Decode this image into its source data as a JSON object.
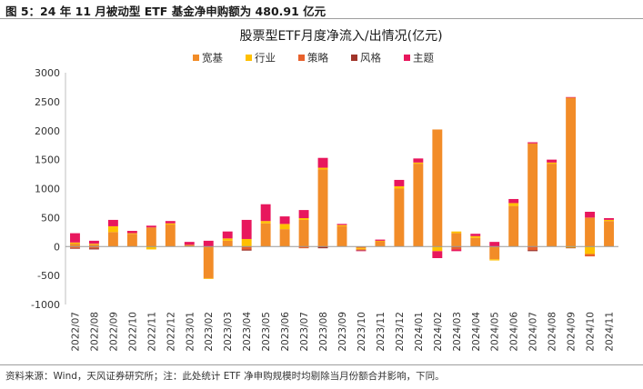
{
  "figure_title": "图 5：24 年 11 月被动型 ETF 基金净申购额为 480.91 亿元",
  "source_note": "资料来源：Wind，天风证券研究所；注：此处统计 ETF 净申购规模时均剔除当月份额合并影响，下同。",
  "chart_data": {
    "type": "bar",
    "stacked": true,
    "title": "股票型ETF月度净流入/出情况(亿元)",
    "xlabel": "",
    "ylabel": "",
    "ylim": [
      -1000,
      3000
    ],
    "yticks": [
      -1000,
      -500,
      0,
      500,
      1000,
      1500,
      2000,
      2500,
      3000
    ],
    "legend_position": "top-center",
    "categories": [
      "2022/07",
      "2022/08",
      "2022/09",
      "2022/10",
      "2022/11",
      "2022/12",
      "2023/01",
      "2023/02",
      "2023/03",
      "2023/04",
      "2023/05",
      "2023/06",
      "2023/07",
      "2023/08",
      "2023/09",
      "2023/10",
      "2023/11",
      "2023/12",
      "2024/01",
      "2024/02",
      "2024/03",
      "2024/04",
      "2024/05",
      "2024/06",
      "2024/07",
      "2024/08",
      "2024/09",
      "2024/10",
      "2024/11"
    ],
    "series": [
      {
        "name": "宽基",
        "color": "#F28C28",
        "values": [
          50,
          40,
          250,
          220,
          330,
          380,
          30,
          -550,
          100,
          0,
          400,
          300,
          460,
          1330,
          350,
          -30,
          90,
          1000,
          1430,
          2020,
          230,
          150,
          -220,
          700,
          1780,
          1430,
          2570,
          500,
          440
        ]
      },
      {
        "name": "行业",
        "color": "#FFC000",
        "values": [
          20,
          10,
          100,
          10,
          -50,
          20,
          0,
          -10,
          40,
          130,
          40,
          90,
          30,
          30,
          20,
          -20,
          10,
          40,
          20,
          -80,
          30,
          30,
          -20,
          50,
          0,
          20,
          -20,
          -130,
          20
        ]
      },
      {
        "name": "策略",
        "color": "#E8612C",
        "values": [
          -30,
          -30,
          0,
          0,
          0,
          0,
          0,
          0,
          0,
          -50,
          0,
          0,
          -30,
          0,
          0,
          -10,
          0,
          0,
          0,
          0,
          -50,
          0,
          0,
          0,
          -60,
          0,
          0,
          -40,
          0
        ]
      },
      {
        "name": "风格",
        "color": "#A0342A",
        "values": [
          -10,
          -20,
          0,
          0,
          0,
          0,
          0,
          0,
          0,
          -20,
          0,
          0,
          0,
          -30,
          0,
          -10,
          0,
          0,
          0,
          0,
          0,
          0,
          0,
          0,
          -20,
          0,
          -10,
          0,
          0
        ]
      },
      {
        "name": "主题",
        "color": "#E8175D",
        "values": [
          160,
          50,
          110,
          40,
          30,
          40,
          50,
          100,
          120,
          330,
          290,
          130,
          140,
          170,
          20,
          -10,
          20,
          110,
          70,
          -120,
          -30,
          40,
          80,
          70,
          20,
          50,
          10,
          100,
          30
        ]
      }
    ]
  }
}
